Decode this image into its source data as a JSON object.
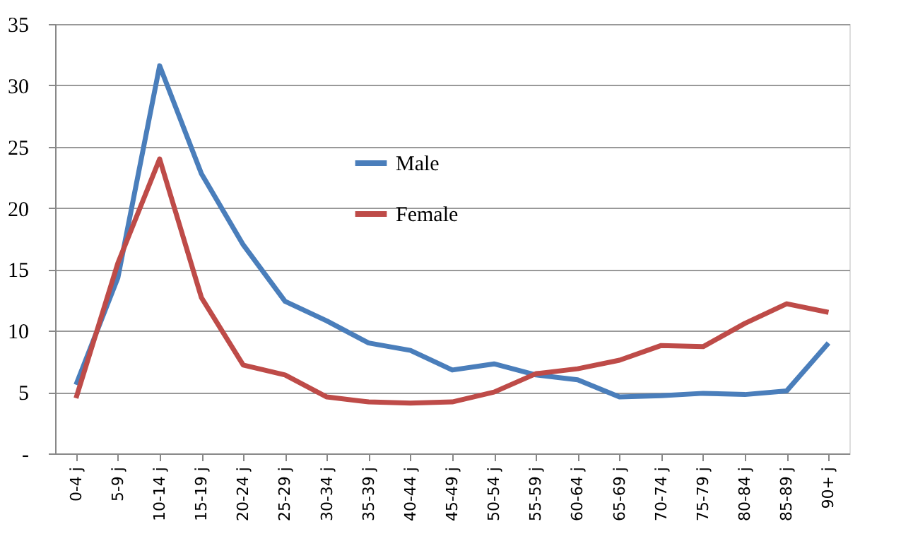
{
  "chart_data": {
    "type": "line",
    "categories": [
      "0-4 j",
      "5-9 j",
      "10-14 j",
      "15-19 j",
      "20-24 j",
      "25-29 j",
      "30-34 j",
      "35-39 j",
      "40-44 j",
      "45-49 j",
      "50-54 j",
      "55-59 j",
      "60-64 j",
      "65-69 j",
      "70-74 j",
      "75-79 j",
      "80-84 j",
      "85-89 j",
      "90+ j"
    ],
    "series": [
      {
        "name": "Male",
        "color": "#4a7ebb",
        "values": [
          5.6,
          14.3,
          31.6,
          22.8,
          17.0,
          12.4,
          10.8,
          9.0,
          8.4,
          6.8,
          7.3,
          6.4,
          6.0,
          4.6,
          4.7,
          4.9,
          4.8,
          5.1,
          9.0
        ]
      },
      {
        "name": "Female",
        "color": "#be4b48",
        "values": [
          4.5,
          15.5,
          24.0,
          12.7,
          7.2,
          6.4,
          4.6,
          4.2,
          4.1,
          4.2,
          5.0,
          6.5,
          6.9,
          7.6,
          8.8,
          8.7,
          10.6,
          12.2,
          11.5
        ]
      }
    ],
    "ylim": [
      0,
      35
    ],
    "yticks": [
      {
        "value": 0,
        "label": "-"
      },
      5,
      10,
      15,
      20,
      25,
      30,
      35
    ],
    "grid": "y",
    "legend": "top",
    "marker": "none",
    "line_style": "solid"
  }
}
